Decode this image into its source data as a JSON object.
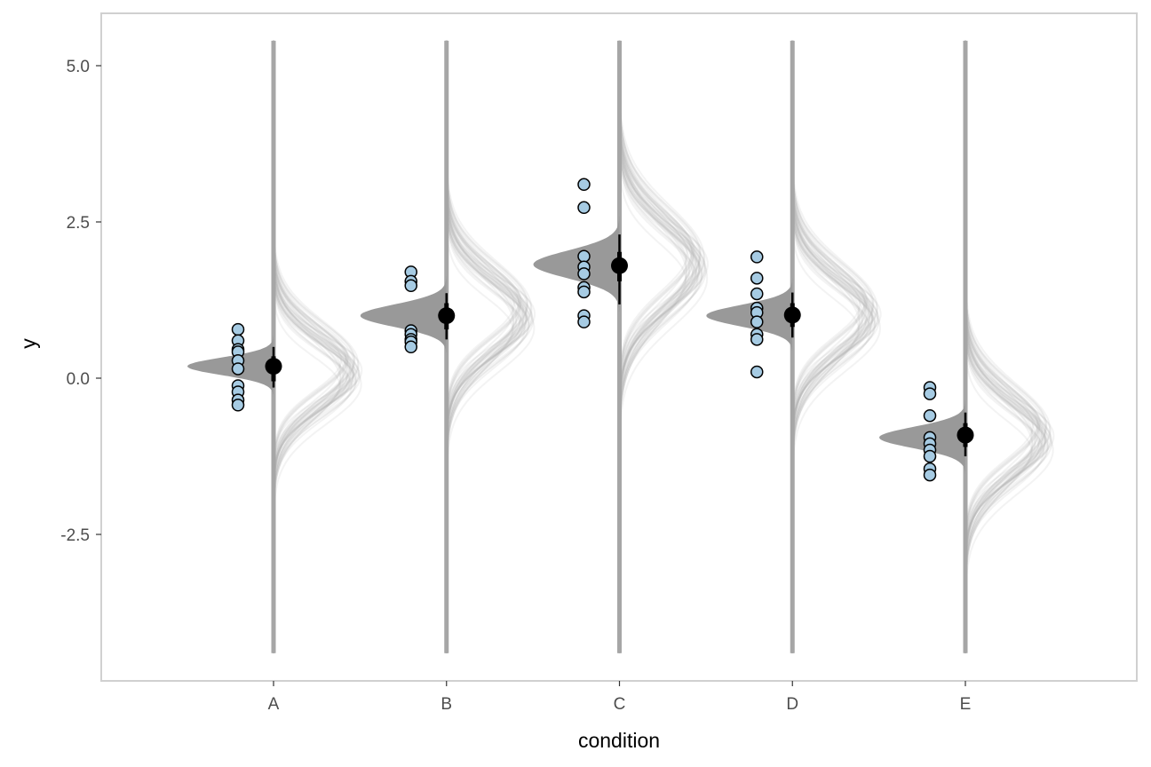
{
  "chart_data": {
    "type": "raincloud-posterior",
    "title": "",
    "xlabel": "condition",
    "ylabel": "y",
    "categories": [
      "A",
      "B",
      "C",
      "D",
      "E"
    ],
    "ylim": [
      -4.8,
      5.85
    ],
    "yticks": [
      5.0,
      2.5,
      0.0,
      -2.5
    ],
    "ytick_labels": [
      "5.0",
      "2.5",
      "0.0",
      "-2.5"
    ],
    "grid": false,
    "legend": "none",
    "vline_range": [
      -4.4,
      5.4
    ],
    "groups": [
      {
        "category": "A",
        "observations": [
          0.78,
          0.6,
          0.46,
          0.42,
          0.28,
          0.15,
          -0.12,
          -0.22,
          -0.35,
          -0.43
        ],
        "estimate": 0.19,
        "interval_66": [
          -0.05,
          0.35
        ],
        "interval_95": [
          -0.15,
          0.5
        ],
        "mean_posterior": {
          "center": 0.19,
          "sd": 0.14
        },
        "predictive": {
          "center": 0.1,
          "sd": 0.55
        }
      },
      {
        "category": "B",
        "observations": [
          1.7,
          1.55,
          1.48,
          0.76,
          0.7,
          0.62,
          0.58,
          0.5
        ],
        "estimate": 1.0,
        "interval_66": [
          0.78,
          1.2
        ],
        "interval_95": [
          0.62,
          1.36
        ],
        "mean_posterior": {
          "center": 1.0,
          "sd": 0.18
        },
        "predictive": {
          "center": 1.0,
          "sd": 0.6
        }
      },
      {
        "category": "C",
        "observations": [
          3.1,
          2.73,
          1.95,
          1.78,
          1.67,
          1.45,
          1.38,
          1.0,
          0.9
        ],
        "estimate": 1.8,
        "interval_66": [
          1.55,
          2.02
        ],
        "interval_95": [
          1.18,
          2.3
        ],
        "mean_posterior": {
          "center": 1.82,
          "sd": 0.22
        },
        "predictive": {
          "center": 1.8,
          "sd": 0.68
        }
      },
      {
        "category": "D",
        "observations": [
          1.94,
          1.6,
          1.35,
          1.12,
          1.05,
          0.9,
          0.7,
          0.62,
          0.1
        ],
        "estimate": 1.01,
        "interval_66": [
          0.82,
          1.2
        ],
        "interval_95": [
          0.65,
          1.37
        ],
        "mean_posterior": {
          "center": 1.0,
          "sd": 0.17
        },
        "predictive": {
          "center": 1.0,
          "sd": 0.6
        }
      },
      {
        "category": "E",
        "observations": [
          -0.15,
          -0.25,
          -0.6,
          -0.95,
          -1.05,
          -1.15,
          -1.25,
          -1.45,
          -1.55
        ],
        "estimate": -0.91,
        "interval_66": [
          -1.1,
          -0.72
        ],
        "interval_95": [
          -1.25,
          -0.55
        ],
        "mean_posterior": {
          "center": -0.95,
          "sd": 0.17
        },
        "predictive": {
          "center": -0.95,
          "sd": 0.6
        }
      }
    ]
  },
  "colors": {
    "panel_border": "#d0d0d0",
    "vline": "#a6a6a6",
    "mean_density": "#999999",
    "predictive_curves": "#b3b3b3",
    "point_fill": "#a6cbe3",
    "point_stroke": "#000000",
    "estimate": "#000000",
    "tick_label": "#4d4d4d",
    "axis_title": "#000000"
  }
}
